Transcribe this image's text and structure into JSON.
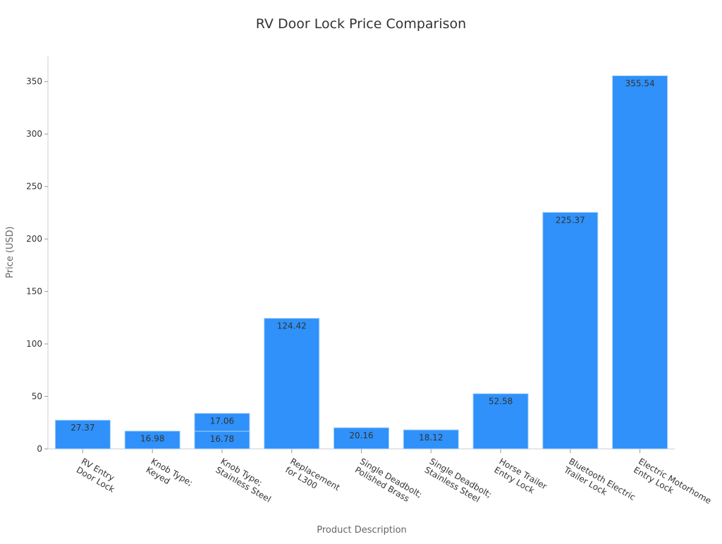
{
  "chart_data": {
    "type": "bar",
    "title": "RV Door Lock Price Comparison",
    "xlabel": "Product Description",
    "ylabel": "Price (USD)",
    "ylim": [
      0,
      374
    ],
    "yticks": [
      0,
      50,
      100,
      150,
      200,
      250,
      300,
      350
    ],
    "grid": false,
    "bar_color": "#2f91f9",
    "label_color": "#333333",
    "categories": [
      [
        "RV Entry",
        "Door Lock"
      ],
      [
        "Knob Type;",
        "Keyed"
      ],
      [
        "Knob Type;",
        "Stainless Steel"
      ],
      [
        "Replacement",
        "for L300"
      ],
      [
        "Single Deadbolt;",
        "Polished Brass"
      ],
      [
        "Single Deadbolt;",
        "Stainless Steel"
      ],
      [
        "Horse Trailer",
        "Entry Lock"
      ],
      [
        "Bluetooth Electric",
        "Trailer Lock"
      ],
      [
        "Electric Motorhome",
        "Entry Lock"
      ]
    ],
    "bars": [
      {
        "category": 0,
        "value": 27.37,
        "label": "27.37"
      },
      {
        "category": 1,
        "value": 16.98,
        "label": "16.98"
      },
      {
        "category": 2,
        "value": 16.78,
        "label": "16.78"
      },
      {
        "category": 2,
        "value": 17.06,
        "label": "17.06",
        "stacked_on": 16.78
      },
      {
        "category": 3,
        "value": 124.42,
        "label": "124.42"
      },
      {
        "category": 4,
        "value": 20.16,
        "label": "20.16"
      },
      {
        "category": 5,
        "value": 18.12,
        "label": "18.12"
      },
      {
        "category": 6,
        "value": 52.58,
        "label": "52.58"
      },
      {
        "category": 7,
        "value": 225.37,
        "label": "225.37"
      },
      {
        "category": 8,
        "value": 355.54,
        "label": "355.54"
      }
    ]
  }
}
